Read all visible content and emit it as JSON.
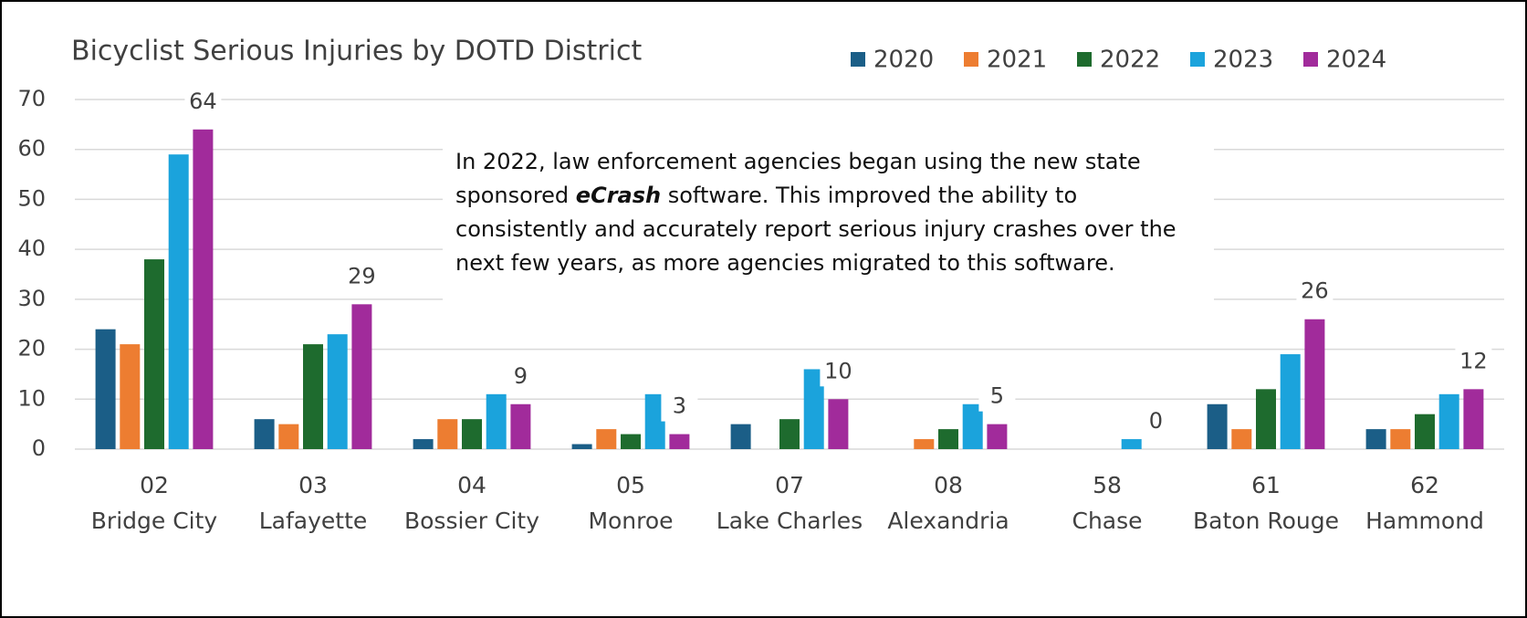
{
  "chart_data": {
    "type": "bar",
    "title": "Bicyclist Serious Injuries by DOTD District",
    "categories": [
      [
        "02",
        "Bridge City"
      ],
      [
        "03",
        "Lafayette"
      ],
      [
        "04",
        "Bossier City"
      ],
      [
        "05",
        "Monroe"
      ],
      [
        "07",
        "Lake Charles"
      ],
      [
        "08",
        "Alexandria"
      ],
      [
        "58",
        "Chase"
      ],
      [
        "61",
        "Baton Rouge"
      ],
      [
        "62",
        "Hammond"
      ]
    ],
    "series": [
      {
        "name": "2020",
        "color": "#1b5e87",
        "values": [
          24,
          6,
          2,
          1,
          5,
          0,
          0,
          9,
          4
        ]
      },
      {
        "name": "2021",
        "color": "#ed7d31",
        "values": [
          21,
          5,
          6,
          4,
          0,
          2,
          0,
          4,
          4
        ]
      },
      {
        "name": "2022",
        "color": "#1e6b2e",
        "values": [
          38,
          21,
          6,
          3,
          6,
          4,
          0,
          12,
          7
        ]
      },
      {
        "name": "2023",
        "color": "#1ba3dc",
        "values": [
          59,
          23,
          11,
          11,
          16,
          9,
          2,
          19,
          11
        ]
      },
      {
        "name": "2024",
        "color": "#a12b9b",
        "values": [
          64,
          29,
          9,
          3,
          10,
          5,
          0,
          26,
          12
        ]
      }
    ],
    "data_labels_series": 4,
    "ylim": [
      0,
      70
    ],
    "yticks": [
      0,
      10,
      20,
      30,
      40,
      50,
      60,
      70
    ],
    "grid": true,
    "annotation": [
      "In 2022, law enforcement agencies began using the new state sponsored ",
      "eCrash",
      " software. This improved the ability to consistently and accurately report serious injury crashes over the next few years, as more agencies migrated to this software."
    ]
  }
}
